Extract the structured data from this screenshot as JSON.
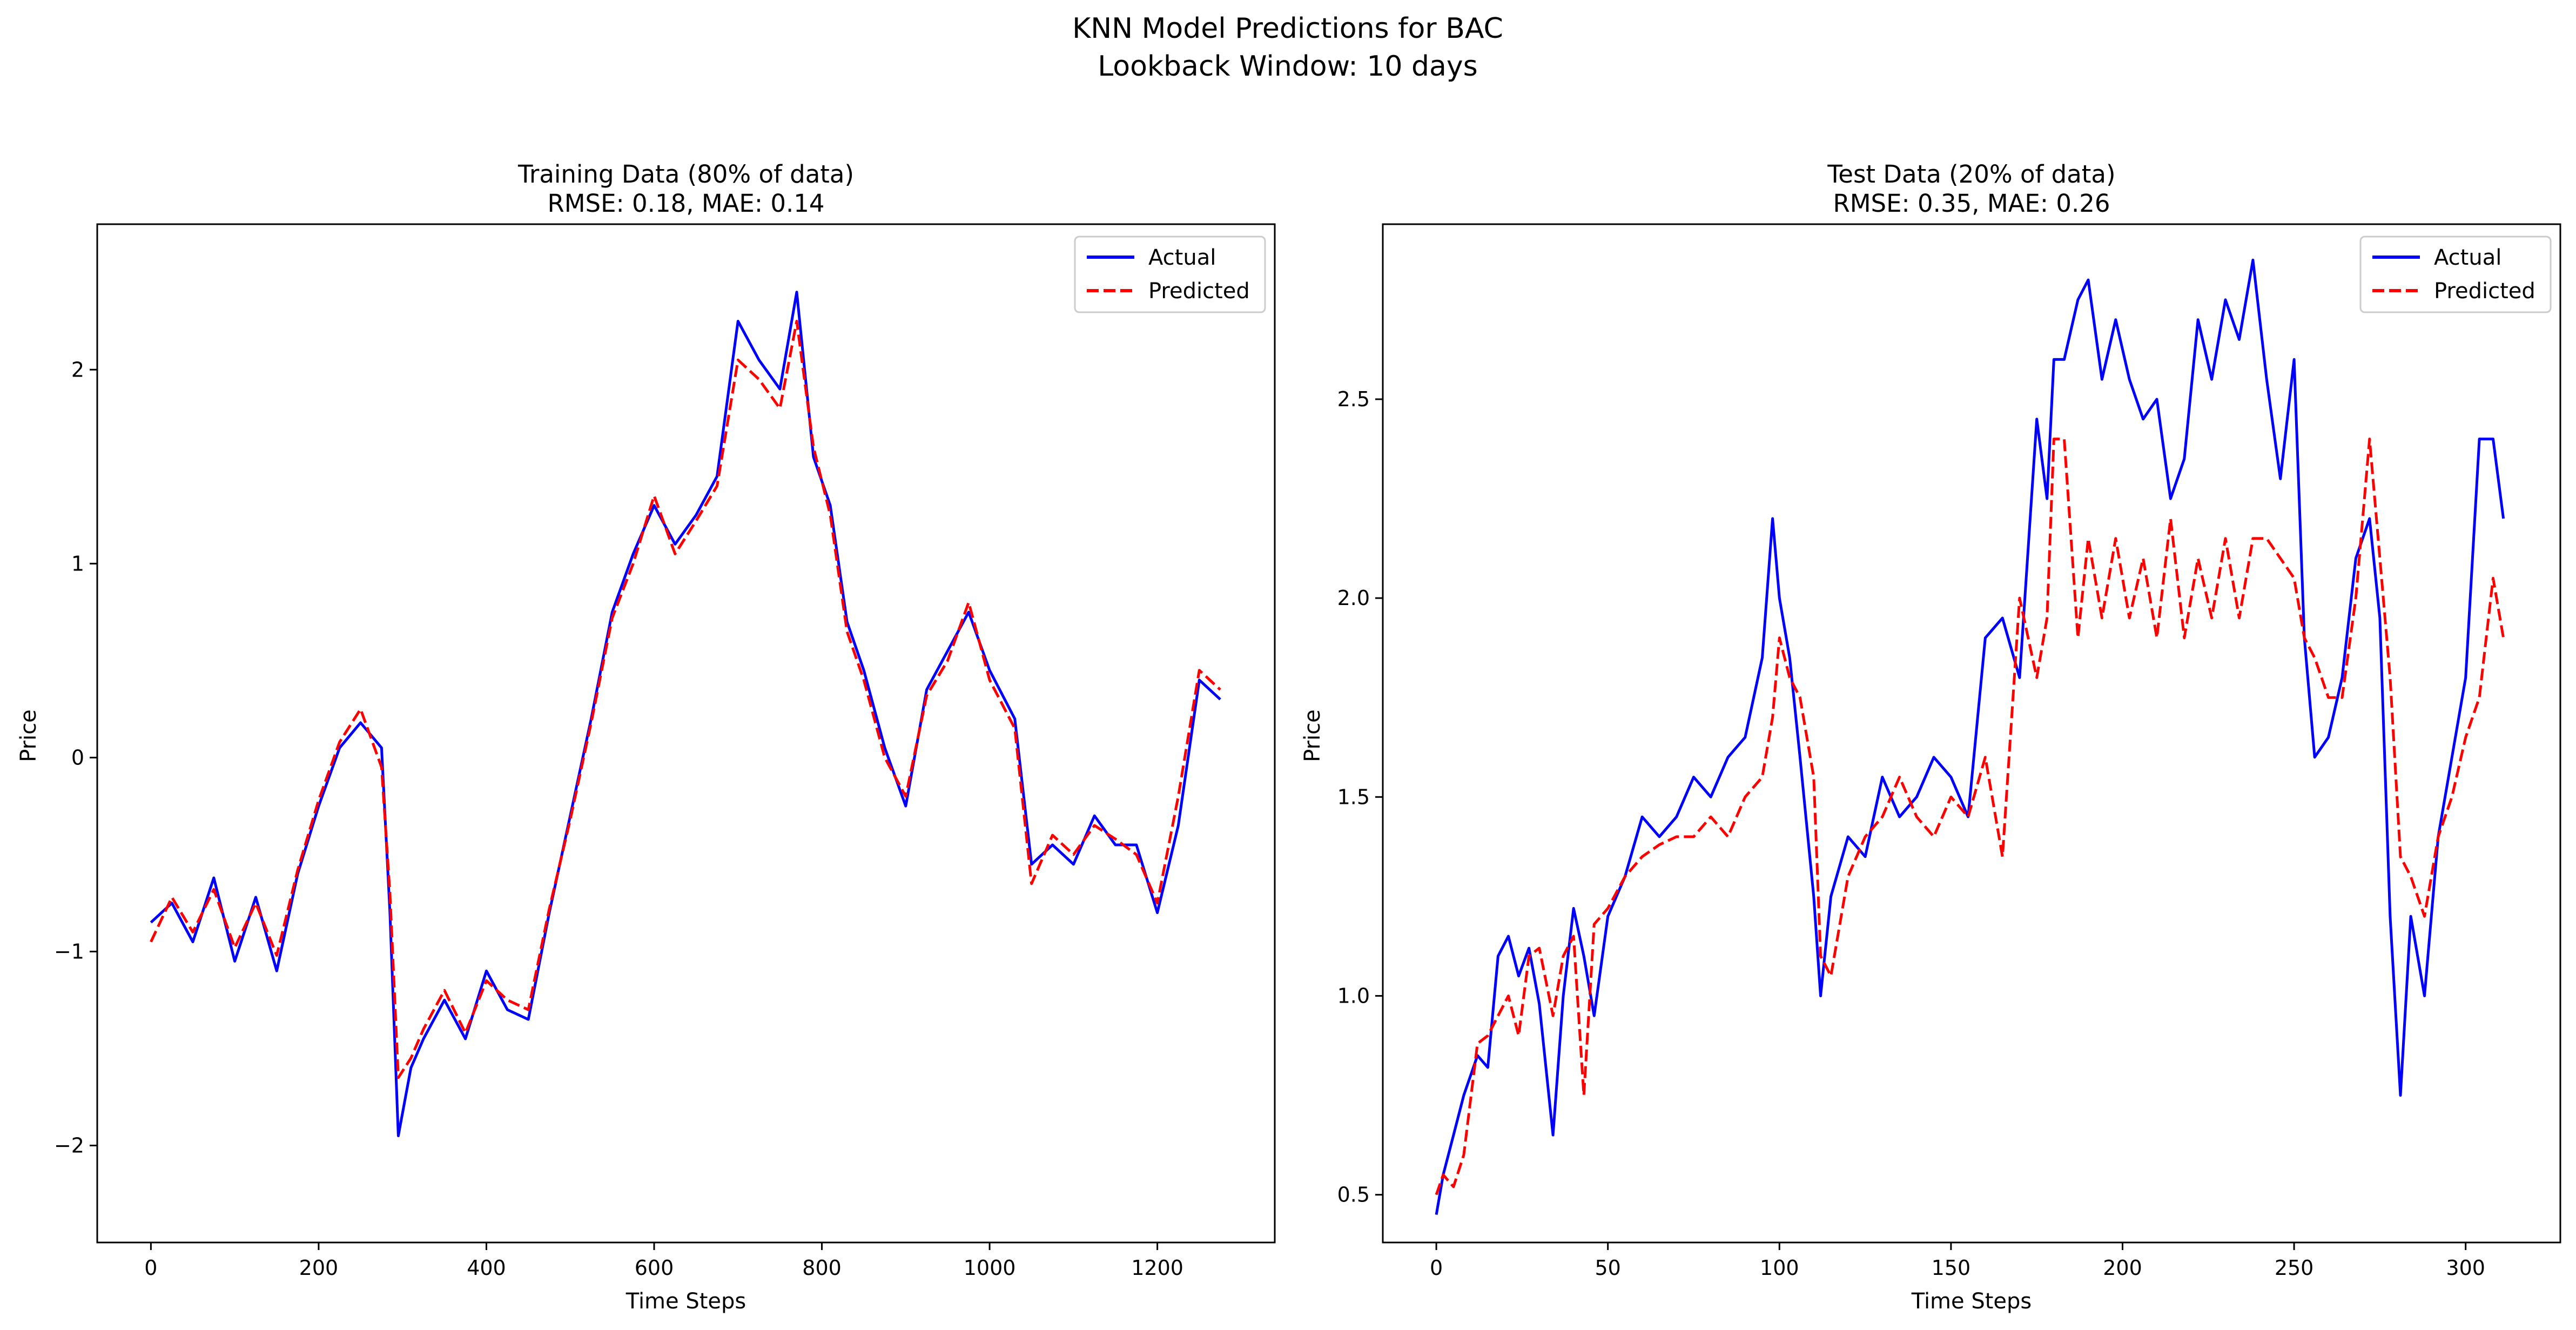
{
  "suptitle": [
    "KNN Model Predictions for BAC",
    "Lookback Window: 10 days"
  ],
  "colors": {
    "actual": "#0000ff",
    "predicted": "#ff0000",
    "axes": "#000000",
    "background": "#ffffff"
  },
  "chart_data": [
    {
      "type": "line",
      "title": [
        "Training Data (80% of data)",
        "RMSE: 0.18, MAE: 0.14"
      ],
      "xlabel": "Time Steps",
      "ylabel": "Price",
      "xlim": [
        -64,
        1340
      ],
      "ylim": [
        -2.5,
        2.75
      ],
      "xticks": [
        0,
        200,
        400,
        600,
        800,
        1000,
        1200
      ],
      "xtick_labels": [
        "0",
        "200",
        "400",
        "600",
        "800",
        "1000",
        "1200"
      ],
      "yticks": [
        -2,
        -1,
        0,
        1,
        2
      ],
      "ytick_labels": [
        "−2",
        "−1",
        "0",
        "1",
        "2"
      ],
      "grid": false,
      "legend": {
        "position": "top-right",
        "entries": [
          "Actual",
          "Predicted"
        ]
      },
      "series": [
        {
          "name": "Actual",
          "style": "solid",
          "x": [
            0,
            25,
            50,
            75,
            100,
            125,
            150,
            175,
            200,
            225,
            250,
            275,
            285,
            295,
            310,
            325,
            350,
            375,
            400,
            425,
            450,
            475,
            500,
            525,
            550,
            575,
            600,
            625,
            650,
            675,
            700,
            725,
            750,
            770,
            790,
            810,
            830,
            850,
            875,
            900,
            925,
            950,
            975,
            1000,
            1030,
            1050,
            1075,
            1100,
            1125,
            1150,
            1175,
            1200,
            1225,
            1250,
            1275
          ],
          "y": [
            -0.85,
            -0.75,
            -0.95,
            -0.62,
            -1.05,
            -0.72,
            -1.1,
            -0.6,
            -0.25,
            0.05,
            0.18,
            0.05,
            -0.8,
            -1.95,
            -1.6,
            -1.45,
            -1.25,
            -1.45,
            -1.1,
            -1.3,
            -1.35,
            -0.8,
            -0.3,
            0.2,
            0.75,
            1.05,
            1.3,
            1.1,
            1.25,
            1.45,
            2.25,
            2.05,
            1.9,
            2.4,
            1.55,
            1.3,
            0.7,
            0.45,
            0.05,
            -0.25,
            0.35,
            0.55,
            0.75,
            0.45,
            0.2,
            -0.55,
            -0.45,
            -0.55,
            -0.3,
            -0.45,
            -0.45,
            -0.8,
            -0.35,
            0.4,
            0.3
          ]
        },
        {
          "name": "Predicted",
          "style": "dashed",
          "x": [
            0,
            25,
            50,
            75,
            100,
            125,
            150,
            175,
            200,
            225,
            250,
            275,
            285,
            295,
            310,
            325,
            350,
            375,
            400,
            425,
            450,
            475,
            500,
            525,
            550,
            575,
            600,
            625,
            650,
            675,
            700,
            725,
            750,
            770,
            790,
            810,
            830,
            850,
            875,
            900,
            925,
            950,
            975,
            1000,
            1030,
            1050,
            1075,
            1100,
            1125,
            1150,
            1175,
            1200,
            1225,
            1250,
            1275
          ],
          "y": [
            -0.95,
            -0.72,
            -0.9,
            -0.68,
            -0.98,
            -0.75,
            -1.02,
            -0.58,
            -0.22,
            0.08,
            0.25,
            -0.05,
            -0.7,
            -1.65,
            -1.55,
            -1.4,
            -1.2,
            -1.42,
            -1.15,
            -1.25,
            -1.3,
            -0.78,
            -0.32,
            0.18,
            0.72,
            1.0,
            1.35,
            1.05,
            1.22,
            1.4,
            2.05,
            1.95,
            1.8,
            2.25,
            1.6,
            1.25,
            0.65,
            0.4,
            0.0,
            -0.2,
            0.32,
            0.5,
            0.8,
            0.4,
            0.15,
            -0.65,
            -0.4,
            -0.5,
            -0.35,
            -0.42,
            -0.5,
            -0.75,
            -0.2,
            0.45,
            0.35
          ]
        }
      ]
    },
    {
      "type": "line",
      "title": [
        "Test Data (20% of data)",
        "RMSE: 0.35, MAE: 0.26"
      ],
      "xlabel": "Time Steps",
      "ylabel": "Price",
      "xlim": [
        -15.6,
        327.6
      ],
      "ylim": [
        0.38,
        2.94
      ],
      "xticks": [
        0,
        50,
        100,
        150,
        200,
        250,
        300
      ],
      "xtick_labels": [
        "0",
        "50",
        "100",
        "150",
        "200",
        "250",
        "300"
      ],
      "yticks": [
        0.5,
        1.0,
        1.5,
        2.0,
        2.5
      ],
      "ytick_labels": [
        "0.5",
        "1.0",
        "1.5",
        "2.0",
        "2.5"
      ],
      "grid": false,
      "legend": {
        "position": "top-right",
        "entries": [
          "Actual",
          "Predicted"
        ]
      },
      "series": [
        {
          "name": "Actual",
          "style": "solid",
          "x": [
            0,
            2,
            5,
            8,
            12,
            15,
            18,
            21,
            24,
            27,
            30,
            34,
            37,
            40,
            43,
            46,
            50,
            55,
            60,
            65,
            70,
            75,
            80,
            85,
            90,
            95,
            98,
            100,
            103,
            106,
            110,
            112,
            115,
            120,
            125,
            130,
            135,
            140,
            145,
            150,
            155,
            160,
            165,
            170,
            175,
            178,
            180,
            183,
            187,
            190,
            194,
            198,
            202,
            206,
            210,
            214,
            218,
            222,
            226,
            230,
            234,
            238,
            242,
            246,
            250,
            253,
            256,
            260,
            264,
            268,
            272,
            275,
            278,
            281,
            284,
            288,
            292,
            296,
            300,
            304,
            308,
            311
          ],
          "y": [
            0.45,
            0.55,
            0.65,
            0.75,
            0.85,
            0.82,
            1.1,
            1.15,
            1.05,
            1.12,
            0.98,
            0.65,
            1.0,
            1.22,
            1.1,
            0.95,
            1.2,
            1.3,
            1.45,
            1.4,
            1.45,
            1.55,
            1.5,
            1.6,
            1.65,
            1.85,
            2.2,
            2.0,
            1.85,
            1.6,
            1.25,
            1.0,
            1.25,
            1.4,
            1.35,
            1.55,
            1.45,
            1.5,
            1.6,
            1.55,
            1.45,
            1.9,
            1.95,
            1.8,
            2.45,
            2.25,
            2.6,
            2.6,
            2.75,
            2.8,
            2.55,
            2.7,
            2.55,
            2.45,
            2.5,
            2.25,
            2.35,
            2.7,
            2.55,
            2.75,
            2.65,
            2.85,
            2.55,
            2.3,
            2.6,
            1.9,
            1.6,
            1.65,
            1.8,
            2.1,
            2.2,
            1.95,
            1.2,
            0.75,
            1.2,
            1.0,
            1.4,
            1.6,
            1.8,
            2.4,
            2.4,
            2.2
          ],
          "markers": []
        },
        {
          "name": "Predicted",
          "style": "dashed",
          "x": [
            0,
            2,
            5,
            8,
            12,
            15,
            18,
            21,
            24,
            27,
            30,
            34,
            37,
            40,
            43,
            46,
            50,
            55,
            60,
            65,
            70,
            75,
            80,
            85,
            90,
            95,
            98,
            100,
            103,
            106,
            110,
            112,
            115,
            120,
            125,
            130,
            135,
            140,
            145,
            150,
            155,
            160,
            165,
            170,
            175,
            178,
            180,
            183,
            187,
            190,
            194,
            198,
            202,
            206,
            210,
            214,
            218,
            222,
            226,
            230,
            234,
            238,
            242,
            246,
            250,
            253,
            256,
            260,
            264,
            268,
            272,
            275,
            278,
            281,
            284,
            288,
            292,
            296,
            300,
            304,
            308,
            311
          ],
          "y": [
            0.5,
            0.55,
            0.52,
            0.6,
            0.88,
            0.9,
            0.95,
            1.0,
            0.9,
            1.1,
            1.12,
            0.95,
            1.1,
            1.15,
            0.75,
            1.18,
            1.22,
            1.3,
            1.35,
            1.38,
            1.4,
            1.4,
            1.45,
            1.4,
            1.5,
            1.55,
            1.7,
            1.9,
            1.8,
            1.75,
            1.55,
            1.1,
            1.05,
            1.3,
            1.4,
            1.45,
            1.55,
            1.45,
            1.4,
            1.5,
            1.45,
            1.6,
            1.35,
            2.0,
            1.8,
            1.95,
            2.4,
            2.4,
            1.9,
            2.15,
            1.95,
            2.15,
            1.95,
            2.1,
            1.9,
            2.2,
            1.9,
            2.1,
            1.95,
            2.15,
            1.95,
            2.15,
            2.15,
            2.1,
            2.05,
            1.9,
            1.85,
            1.75,
            1.75,
            2.0,
            2.4,
            2.1,
            1.8,
            1.35,
            1.3,
            1.2,
            1.4,
            1.5,
            1.65,
            1.75,
            2.05,
            1.9
          ]
        }
      ]
    }
  ]
}
